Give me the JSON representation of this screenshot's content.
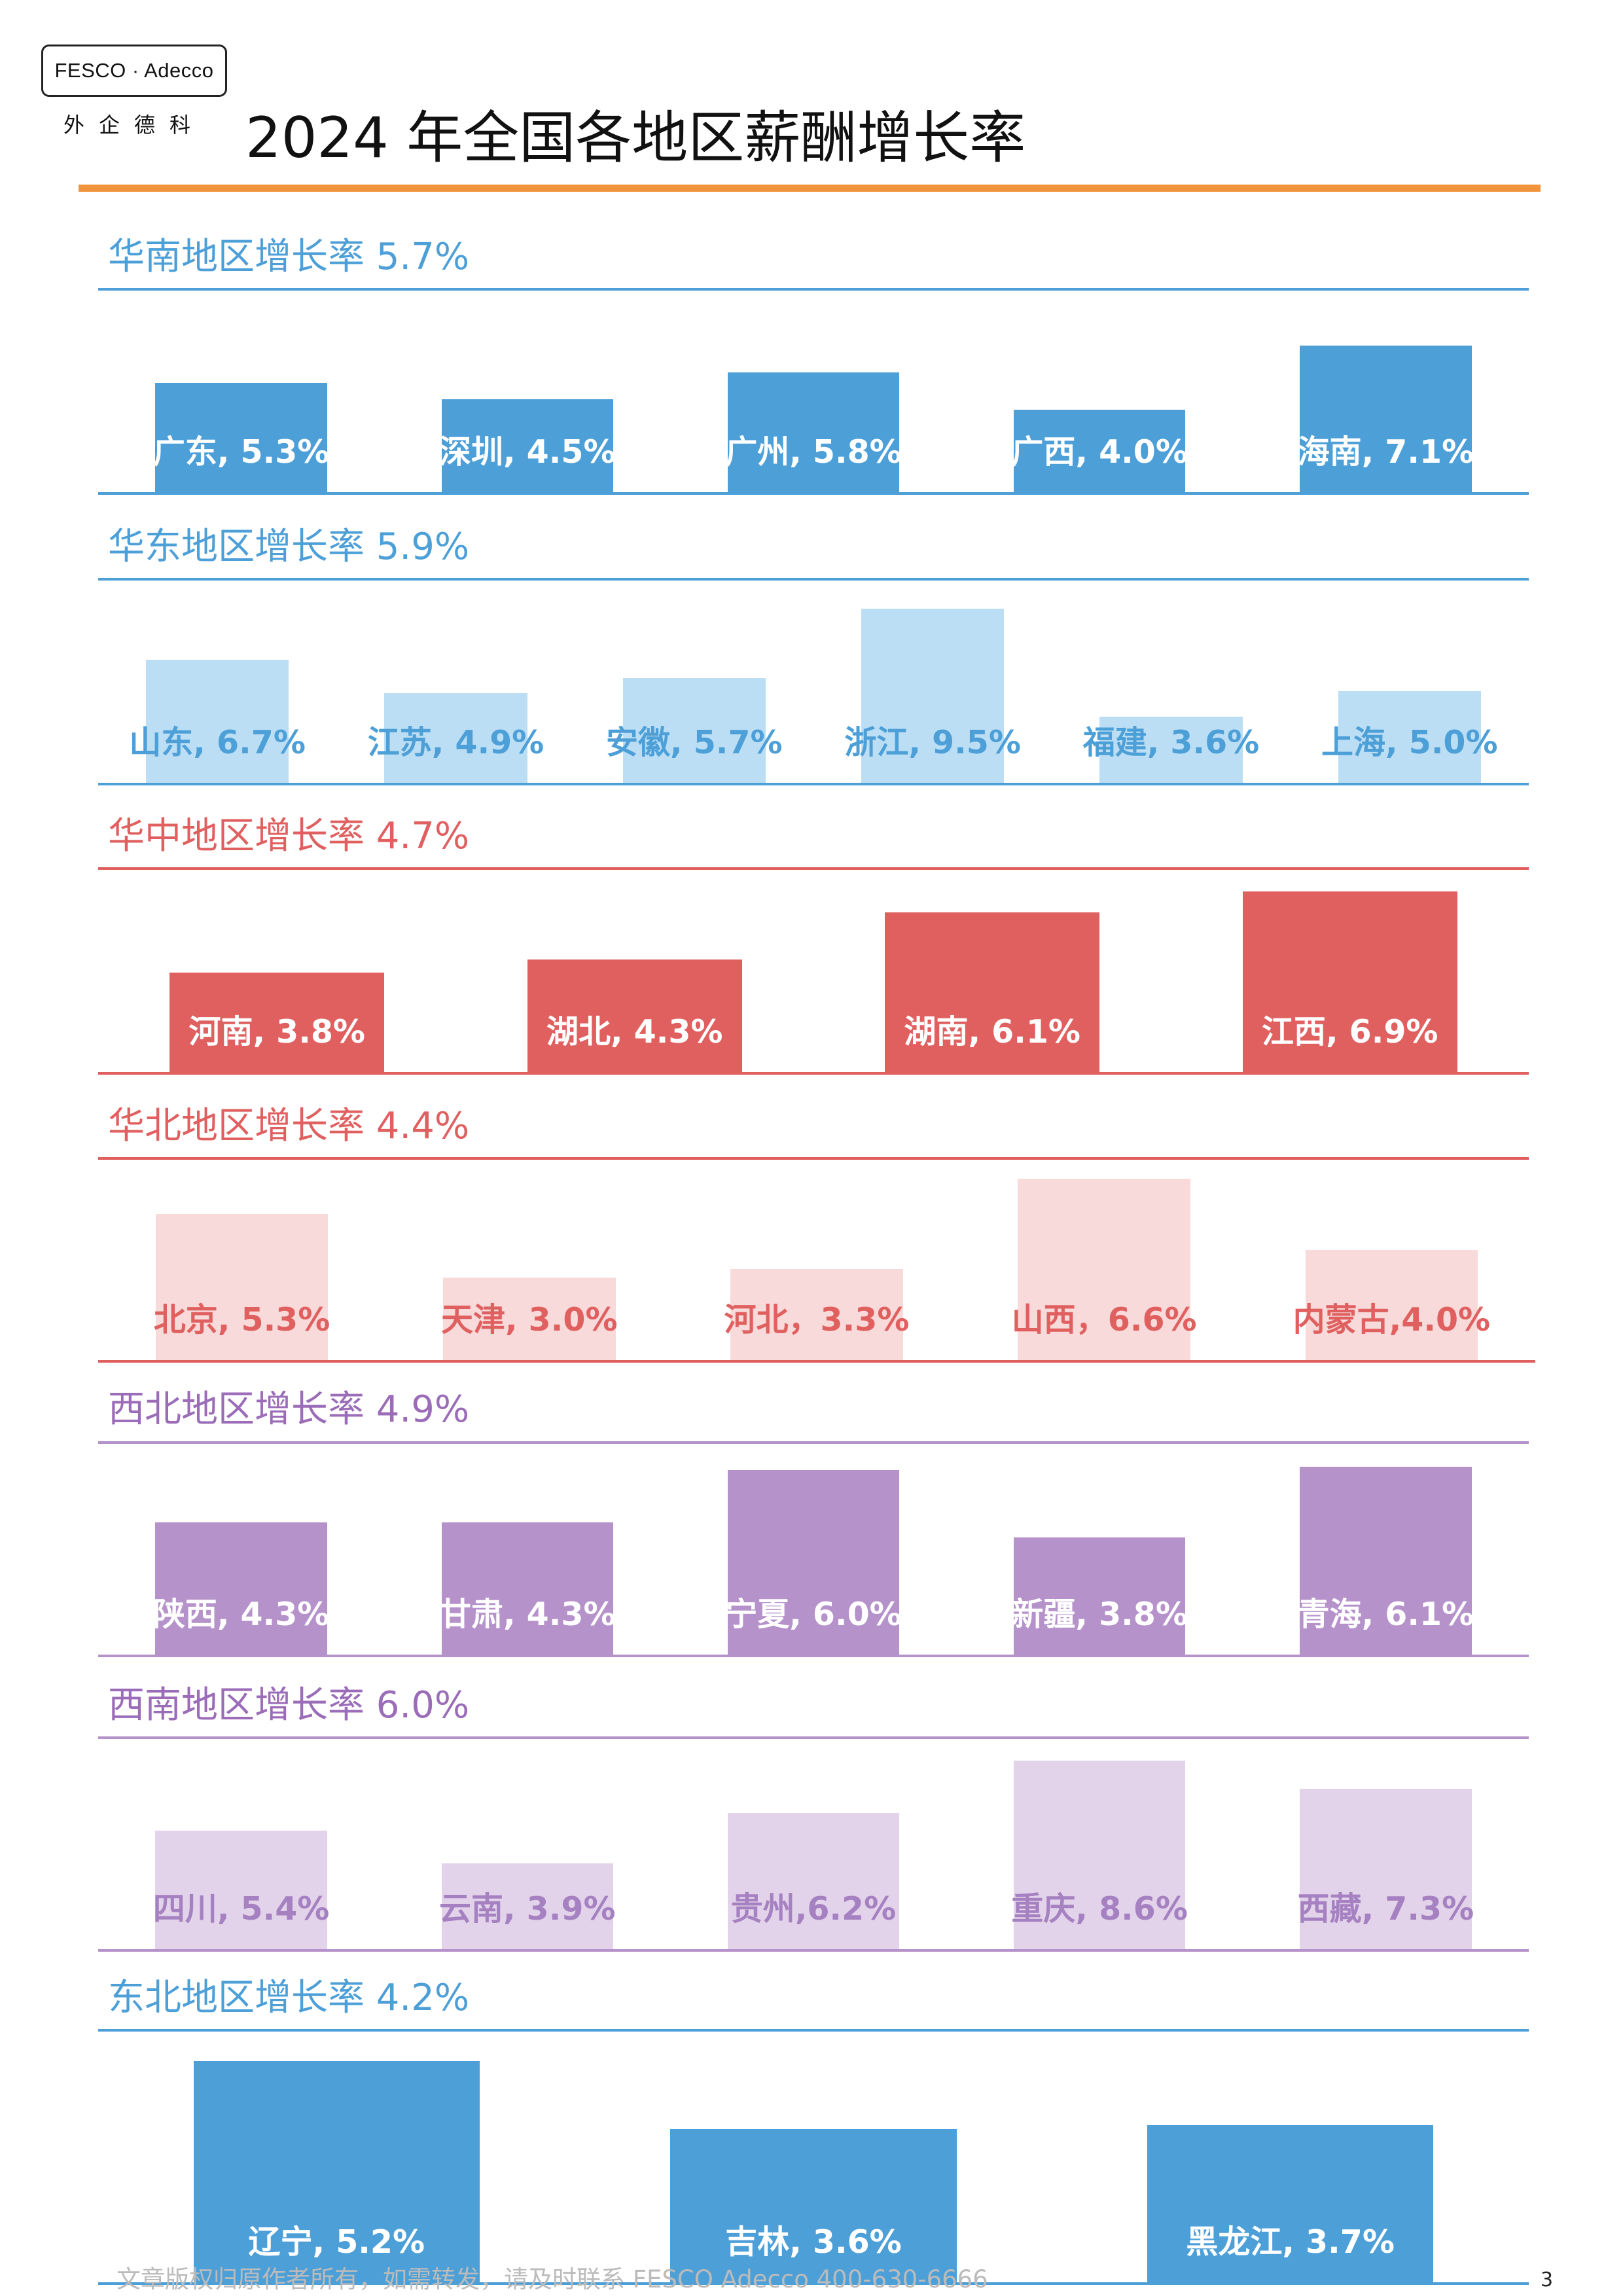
{
  "logo": {
    "brand": "FESCO · Adecco",
    "chinese": "外企德科"
  },
  "title": "2024  年全国各地区薪酬增长率",
  "footer": "文章版权归原作者所有，如需转发，请及时联系 FESCO Adecco 400-630-6666",
  "page_number": "3",
  "chart_data": [
    {
      "type": "bar",
      "title": "华南地区增长率  5.7%",
      "color": "#4d9fd8",
      "title_color": "#4d9fd8",
      "label_color": "#ffffff",
      "categories": [
        "广东",
        "深圳",
        "广州",
        "广西",
        "海南"
      ],
      "values": [
        5.3,
        4.5,
        5.8,
        4.0,
        7.1
      ],
      "labels": [
        "广东, 5.3%",
        "深圳, 4.5%",
        "广州, 5.8%",
        "广西, 4.0%",
        "海南, 7.1%"
      ]
    },
    {
      "type": "bar",
      "title": "华东地区增长率  5.9%",
      "color": "#bbdef4",
      "title_color": "#4d9fd8",
      "label_color": "#4d9fd8",
      "categories": [
        "山东",
        "江苏",
        "安徽",
        "浙江",
        "福建",
        "上海"
      ],
      "values": [
        6.7,
        4.9,
        5.7,
        9.5,
        3.6,
        5.0
      ],
      "labels": [
        "山东, 6.7%",
        "江苏, 4.9%",
        "安徽, 5.7%",
        "浙江, 9.5%",
        "福建, 3.6%",
        "上海, 5.0%"
      ]
    },
    {
      "type": "bar",
      "title": "华中地区增长率  4.7%",
      "color": "#e06060",
      "title_color": "#e06060",
      "label_color": "#ffffff",
      "categories": [
        "河南",
        "湖北",
        "湖南",
        "江西"
      ],
      "values": [
        3.8,
        4.3,
        6.1,
        6.9
      ],
      "labels": [
        "河南, 3.8%",
        "湖北, 4.3%",
        "湖南, 6.1%",
        "江西, 6.9%"
      ]
    },
    {
      "type": "bar",
      "title": "华北地区增长率  4.4%",
      "color": "#f8dada",
      "title_color": "#e06060",
      "label_color": "#e06060",
      "categories": [
        "北京",
        "天津",
        "河北",
        "山西",
        "内蒙古"
      ],
      "values": [
        5.3,
        3.0,
        3.3,
        6.6,
        4.0
      ],
      "labels": [
        "北京, 5.3%",
        "天津, 3.0%",
        "河北，3.3%",
        "山西，6.6%",
        "内蒙古,4.0%"
      ]
    },
    {
      "type": "bar",
      "title": "西北地区增长率  4.9%",
      "color": "#b692cb",
      "title_color": "#9b6cb8",
      "label_color": "#ffffff",
      "categories": [
        "陕西",
        "甘肃",
        "宁夏",
        "新疆",
        "青海"
      ],
      "values": [
        4.3,
        4.3,
        6.0,
        3.8,
        6.1
      ],
      "labels": [
        "陕西, 4.3%",
        "甘肃, 4.3%",
        "宁夏, 6.0%",
        "新疆, 3.8%",
        "青海, 6.1%"
      ]
    },
    {
      "type": "bar",
      "title": "西南地区增长率  6.0%",
      "color": "#e2d3ea",
      "title_color": "#9b6cb8",
      "label_color": "#a681c1",
      "categories": [
        "四川",
        "云南",
        "贵州",
        "重庆",
        "西藏"
      ],
      "values": [
        5.4,
        3.9,
        6.2,
        8.6,
        7.3
      ],
      "labels": [
        "四川, 5.4%",
        "云南, 3.9%",
        "贵州,6.2%",
        "重庆, 8.6%",
        "西藏, 7.3%"
      ]
    },
    {
      "type": "bar",
      "title": "东北地区增长率  4.2%",
      "color": "#4d9fd8",
      "title_color": "#4d9fd8",
      "label_color": "#ffffff",
      "categories": [
        "辽宁",
        "吉林",
        "黑龙江"
      ],
      "values": [
        5.2,
        3.6,
        3.7
      ],
      "labels": [
        "辽宁, 5.2%",
        "吉林, 3.6%",
        "黑龙江, 3.7%"
      ]
    }
  ]
}
